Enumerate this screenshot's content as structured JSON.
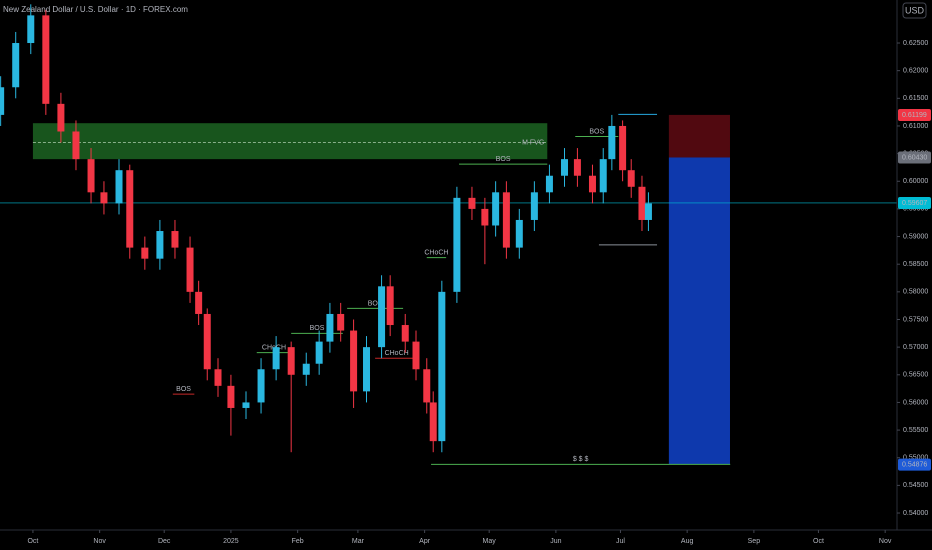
{
  "chart_data": {
    "type": "candlestick",
    "title": "New Zealand Dollar / U.S. Dollar · 1D · FOREX.com",
    "currency": "USD",
    "up_color": "#2ab7e0",
    "down_color": "#f23645",
    "xlim": [
      14.7,
      431.5
    ],
    "ylim": [
      0.53693,
      0.63278
    ],
    "xticks": [
      {
        "value": 30,
        "label": "Oct"
      },
      {
        "value": 61,
        "label": "Nov"
      },
      {
        "value": 91,
        "label": "Dec"
      },
      {
        "value": 122,
        "label": "2025"
      },
      {
        "value": 153,
        "label": "Feb"
      },
      {
        "value": 181,
        "label": "Mar"
      },
      {
        "value": 212,
        "label": "Apr"
      },
      {
        "value": 242,
        "label": "May"
      },
      {
        "value": 273,
        "label": "Jun"
      },
      {
        "value": 303,
        "label": "Jul"
      },
      {
        "value": 334,
        "label": "Aug"
      },
      {
        "value": 365,
        "label": "Sep"
      },
      {
        "value": 395,
        "label": "Oct"
      },
      {
        "value": 426,
        "label": "Nov"
      }
    ],
    "yticks": [
      {
        "value": 0.54,
        "label": "0.54000"
      },
      {
        "value": 0.545,
        "label": "0.54500"
      },
      {
        "value": 0.55,
        "label": "0.55000"
      },
      {
        "value": 0.555,
        "label": "0.55500"
      },
      {
        "value": 0.56,
        "label": "0.56000"
      },
      {
        "value": 0.565,
        "label": "0.56500"
      },
      {
        "value": 0.57,
        "label": "0.57000"
      },
      {
        "value": 0.575,
        "label": "0.57500"
      },
      {
        "value": 0.58,
        "label": "0.58000"
      },
      {
        "value": 0.585,
        "label": "0.58500"
      },
      {
        "value": 0.59,
        "label": "0.59000"
      },
      {
        "value": 0.595,
        "label": "0.59500"
      },
      {
        "value": 0.6,
        "label": "0.60000"
      },
      {
        "value": 0.605,
        "label": "0.60500"
      },
      {
        "value": 0.61,
        "label": "0.61000"
      },
      {
        "value": 0.615,
        "label": "0.61500"
      },
      {
        "value": 0.62,
        "label": "0.62000"
      },
      {
        "value": 0.625,
        "label": "0.62500"
      }
    ],
    "candles": [
      {
        "x": 15,
        "open": 0.612,
        "high": 0.619,
        "low": 0.61,
        "close": 0.617
      },
      {
        "x": 22,
        "open": 0.617,
        "high": 0.627,
        "low": 0.615,
        "close": 0.625
      },
      {
        "x": 29,
        "open": 0.625,
        "high": 0.632,
        "low": 0.623,
        "close": 0.63
      },
      {
        "x": 36,
        "open": 0.63,
        "high": 0.631,
        "low": 0.612,
        "close": 0.614
      },
      {
        "x": 43,
        "open": 0.614,
        "high": 0.616,
        "low": 0.607,
        "close": 0.609
      },
      {
        "x": 50,
        "open": 0.609,
        "high": 0.611,
        "low": 0.602,
        "close": 0.604
      },
      {
        "x": 57,
        "open": 0.604,
        "high": 0.606,
        "low": 0.596,
        "close": 0.598
      },
      {
        "x": 63,
        "open": 0.598,
        "high": 0.6,
        "low": 0.594,
        "close": 0.596
      },
      {
        "x": 70,
        "open": 0.596,
        "high": 0.604,
        "low": 0.594,
        "close": 0.602
      },
      {
        "x": 75,
        "open": 0.602,
        "high": 0.603,
        "low": 0.586,
        "close": 0.588
      },
      {
        "x": 82,
        "open": 0.588,
        "high": 0.59,
        "low": 0.584,
        "close": 0.586
      },
      {
        "x": 89,
        "open": 0.586,
        "high": 0.593,
        "low": 0.584,
        "close": 0.591
      },
      {
        "x": 96,
        "open": 0.591,
        "high": 0.593,
        "low": 0.586,
        "close": 0.588
      },
      {
        "x": 103,
        "open": 0.588,
        "high": 0.59,
        "low": 0.578,
        "close": 0.58
      },
      {
        "x": 107,
        "open": 0.58,
        "high": 0.582,
        "low": 0.574,
        "close": 0.576
      },
      {
        "x": 111,
        "open": 0.576,
        "high": 0.577,
        "low": 0.564,
        "close": 0.566
      },
      {
        "x": 116,
        "open": 0.566,
        "high": 0.568,
        "low": 0.561,
        "close": 0.563
      },
      {
        "x": 122,
        "open": 0.563,
        "high": 0.565,
        "low": 0.554,
        "close": 0.559
      },
      {
        "x": 129,
        "open": 0.559,
        "high": 0.562,
        "low": 0.557,
        "close": 0.56
      },
      {
        "x": 136,
        "open": 0.56,
        "high": 0.568,
        "low": 0.558,
        "close": 0.566
      },
      {
        "x": 143,
        "open": 0.566,
        "high": 0.572,
        "low": 0.564,
        "close": 0.57
      },
      {
        "x": 150,
        "open": 0.57,
        "high": 0.571,
        "low": 0.551,
        "close": 0.565
      },
      {
        "x": 157,
        "open": 0.565,
        "high": 0.569,
        "low": 0.563,
        "close": 0.567
      },
      {
        "x": 163,
        "open": 0.567,
        "high": 0.573,
        "low": 0.565,
        "close": 0.571
      },
      {
        "x": 168,
        "open": 0.571,
        "high": 0.578,
        "low": 0.569,
        "close": 0.576
      },
      {
        "x": 173,
        "open": 0.576,
        "high": 0.578,
        "low": 0.571,
        "close": 0.573
      },
      {
        "x": 179,
        "open": 0.573,
        "high": 0.575,
        "low": 0.559,
        "close": 0.562
      },
      {
        "x": 185,
        "open": 0.562,
        "high": 0.572,
        "low": 0.56,
        "close": 0.57
      },
      {
        "x": 192,
        "open": 0.57,
        "high": 0.583,
        "low": 0.568,
        "close": 0.581
      },
      {
        "x": 196,
        "open": 0.581,
        "high": 0.583,
        "low": 0.572,
        "close": 0.574
      },
      {
        "x": 203,
        "open": 0.574,
        "high": 0.576,
        "low": 0.569,
        "close": 0.571
      },
      {
        "x": 208,
        "open": 0.571,
        "high": 0.573,
        "low": 0.564,
        "close": 0.566
      },
      {
        "x": 213,
        "open": 0.566,
        "high": 0.568,
        "low": 0.558,
        "close": 0.56
      },
      {
        "x": 216,
        "open": 0.56,
        "high": 0.562,
        "low": 0.551,
        "close": 0.553
      },
      {
        "x": 220,
        "open": 0.553,
        "high": 0.582,
        "low": 0.551,
        "close": 0.58
      },
      {
        "x": 227,
        "open": 0.58,
        "high": 0.599,
        "low": 0.578,
        "close": 0.597
      },
      {
        "x": 234,
        "open": 0.597,
        "high": 0.599,
        "low": 0.593,
        "close": 0.595
      },
      {
        "x": 240,
        "open": 0.595,
        "high": 0.597,
        "low": 0.585,
        "close": 0.592
      },
      {
        "x": 245,
        "open": 0.592,
        "high": 0.6,
        "low": 0.59,
        "close": 0.598
      },
      {
        "x": 250,
        "open": 0.598,
        "high": 0.6,
        "low": 0.586,
        "close": 0.588
      },
      {
        "x": 256,
        "open": 0.588,
        "high": 0.595,
        "low": 0.586,
        "close": 0.593
      },
      {
        "x": 263,
        "open": 0.593,
        "high": 0.6,
        "low": 0.591,
        "close": 0.598
      },
      {
        "x": 270,
        "open": 0.598,
        "high": 0.603,
        "low": 0.596,
        "close": 0.601
      },
      {
        "x": 277,
        "open": 0.601,
        "high": 0.606,
        "low": 0.599,
        "close": 0.604
      },
      {
        "x": 283,
        "open": 0.604,
        "high": 0.606,
        "low": 0.599,
        "close": 0.601
      },
      {
        "x": 290,
        "open": 0.601,
        "high": 0.603,
        "low": 0.596,
        "close": 0.598
      },
      {
        "x": 295,
        "open": 0.598,
        "high": 0.606,
        "low": 0.596,
        "close": 0.604
      },
      {
        "x": 299,
        "open": 0.604,
        "high": 0.612,
        "low": 0.602,
        "close": 0.61
      },
      {
        "x": 304,
        "open": 0.61,
        "high": 0.611,
        "low": 0.6,
        "close": 0.602
      },
      {
        "x": 308,
        "open": 0.602,
        "high": 0.604,
        "low": 0.597,
        "close": 0.599
      },
      {
        "x": 313,
        "open": 0.599,
        "high": 0.601,
        "low": 0.591,
        "close": 0.593
      },
      {
        "x": 316,
        "open": 0.593,
        "high": 0.598,
        "low": 0.591,
        "close": 0.596
      }
    ],
    "zones": [
      {
        "label": "M FVG",
        "top": 0.6105,
        "bottom": 0.604,
        "mid": 0.607,
        "x": [
          30,
          269
        ],
        "color": "#1b5e20"
      },
      {
        "top": 0.612,
        "bottom": 0.6043,
        "x": [
          325.5,
          353.9
        ],
        "color": "#5a0a12"
      },
      {
        "top": 0.6043,
        "bottom": 0.5488,
        "x": [
          325.5,
          353.9
        ],
        "color": "#0f3fc0"
      }
    ],
    "structures": [
      {
        "label": "CHoCH",
        "level": 0.569,
        "x": [
          134,
          150
        ],
        "color": "#4caf50"
      },
      {
        "label": "BOS",
        "level": 0.5725,
        "x": [
          150,
          174
        ],
        "color": "#4caf50"
      },
      {
        "label": "BOS",
        "level": 0.577,
        "x": [
          176,
          202
        ],
        "color": "#4caf50"
      },
      {
        "label": "CHoCH",
        "level": 0.568,
        "x": [
          189,
          209
        ],
        "color": "#c62828"
      },
      {
        "label": "BOS",
        "level": 0.5615,
        "x": [
          95,
          105
        ],
        "color": "#c62828"
      },
      {
        "label": "CHoCH",
        "level": 0.5862,
        "x": [
          213,
          222
        ],
        "color": "#4caf50"
      },
      {
        "label": "BOS",
        "level": 0.6031,
        "x": [
          228,
          269
        ],
        "color": "#4caf50"
      },
      {
        "label": "BOS",
        "level": 0.6081,
        "x": [
          282,
          302
        ],
        "color": "#4caf50"
      },
      {
        "label": "$ $ $",
        "level": 0.5488,
        "x": [
          215,
          354
        ],
        "color": "#4caf50"
      }
    ],
    "levels": [
      {
        "level": 0.6121,
        "x": [
          302,
          320
        ],
        "color": "#26a9e0"
      },
      {
        "level": 0.5885,
        "x": [
          293,
          320
        ],
        "color": "#8a8f99"
      }
    ],
    "price_labels": [
      {
        "value": 0.61199,
        "label": "0.61199",
        "color": "#f23645"
      },
      {
        "value": 0.6043,
        "label": "0.60430",
        "color": "#6b6f79"
      },
      {
        "value": 0.59607,
        "label": "0.59607",
        "color": "#00bcd4"
      },
      {
        "value": 0.54876,
        "label": "0.54876",
        "color": "#1e5bd8"
      }
    ],
    "last_price": {
      "value": 0.59607,
      "color": "#00bcd4"
    }
  }
}
